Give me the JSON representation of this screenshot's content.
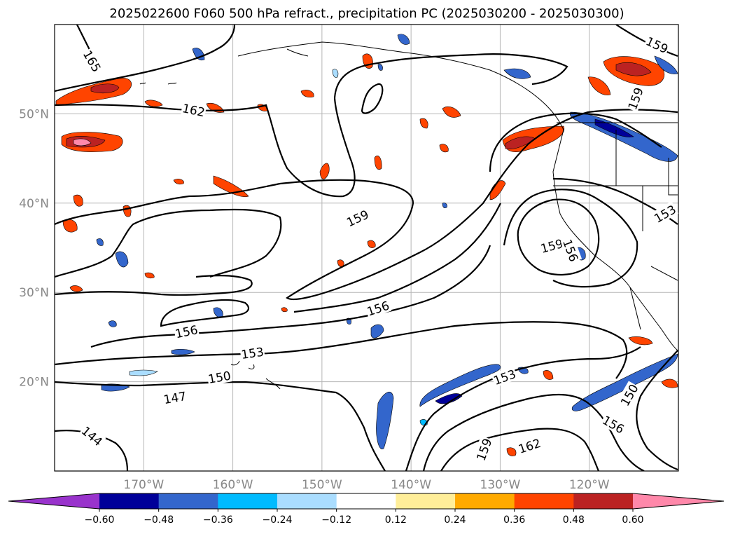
{
  "chart_data": {
    "type": "heatmap",
    "title": "2025022600 F060 500 hPa refract., precipitation PC (2025030200 - 2025030300)",
    "map": {
      "lon_range": [
        -180,
        -110
      ],
      "lat_range": [
        10,
        60
      ],
      "lat_ticks": [
        {
          "value": 20,
          "label": "20°N"
        },
        {
          "value": 30,
          "label": "30°N"
        },
        {
          "value": 40,
          "label": "40°N"
        },
        {
          "value": 50,
          "label": "50°N"
        }
      ],
      "lon_ticks": [
        {
          "value": -170,
          "label": "170°W"
        },
        {
          "value": -160,
          "label": "160°W"
        },
        {
          "value": -150,
          "label": "150°W"
        },
        {
          "value": -140,
          "label": "140°W"
        },
        {
          "value": -130,
          "label": "130°W"
        },
        {
          "value": -120,
          "label": "120°W"
        }
      ],
      "grid": true
    },
    "colorbar": {
      "extend": "both",
      "boundaries": [
        -0.6,
        -0.48,
        -0.36,
        -0.24,
        -0.12,
        0.12,
        0.24,
        0.36,
        0.48,
        0.6
      ],
      "tick_labels": [
        "−0.60",
        "−0.48",
        "−0.36",
        "−0.24",
        "−0.12",
        "0.12",
        "0.24",
        "0.36",
        "0.48",
        "0.60"
      ],
      "colors": [
        "#9933cc",
        "#000099",
        "#3366cc",
        "#00bbff",
        "#aaddff",
        "#ffffff",
        "#ffee99",
        "#ffaa00",
        "#ff4400",
        "#bb2222",
        "#ff88aa"
      ]
    },
    "contour_labels": [
      {
        "text": "165",
        "lon": -175.8,
        "lat": 55.9,
        "rotate": 60
      },
      {
        "text": "162",
        "lon": -164.4,
        "lat": 50.4,
        "rotate": 12
      },
      {
        "text": "159",
        "lon": -112.4,
        "lat": 57.7,
        "rotate": 25
      },
      {
        "text": "159",
        "lon": -114.8,
        "lat": 51.7,
        "rotate": -70
      },
      {
        "text": "159",
        "lon": -146.0,
        "lat": 38.3,
        "rotate": -25
      },
      {
        "text": "159",
        "lon": -124.2,
        "lat": 35.2,
        "rotate": -15
      },
      {
        "text": "156",
        "lon": -122.1,
        "lat": 34.7,
        "rotate": 70
      },
      {
        "text": "153",
        "lon": -111.5,
        "lat": 38.8,
        "rotate": -30
      },
      {
        "text": "156",
        "lon": -165.2,
        "lat": 25.6,
        "rotate": -12
      },
      {
        "text": "156",
        "lon": -143.7,
        "lat": 28.2,
        "rotate": -18
      },
      {
        "text": "153",
        "lon": -157.8,
        "lat": 23.2,
        "rotate": -8
      },
      {
        "text": "150",
        "lon": -161.5,
        "lat": 20.5,
        "rotate": -10
      },
      {
        "text": "147",
        "lon": -166.5,
        "lat": 18.2,
        "rotate": -10
      },
      {
        "text": "153",
        "lon": -129.5,
        "lat": 20.5,
        "rotate": -20
      },
      {
        "text": "150",
        "lon": -115.5,
        "lat": 18.5,
        "rotate": -60
      },
      {
        "text": "156",
        "lon": -117.3,
        "lat": 15.2,
        "rotate": 30
      },
      {
        "text": "144",
        "lon": -175.8,
        "lat": 13.9,
        "rotate": 40
      },
      {
        "text": "159",
        "lon": -131.8,
        "lat": 12.4,
        "rotate": -70
      },
      {
        "text": "162",
        "lon": -126.7,
        "lat": 12.8,
        "rotate": -18
      }
    ]
  }
}
